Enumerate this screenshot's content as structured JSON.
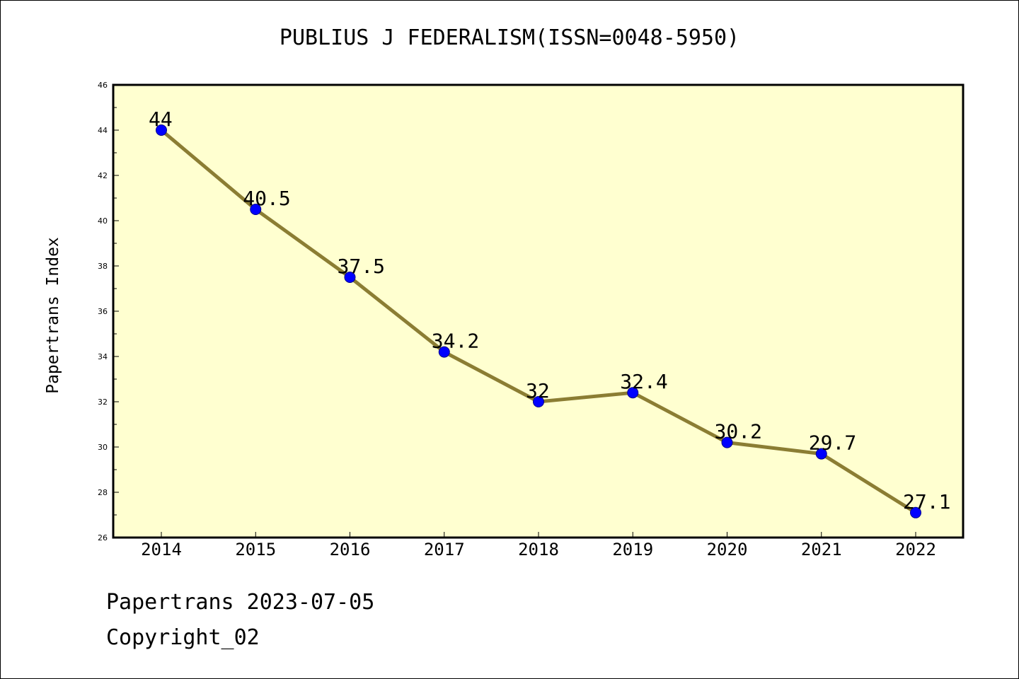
{
  "footer": {
    "date_line": "Papertrans 2023-07-05",
    "copyright": "Copyright_02"
  },
  "colors": {
    "plot_background": "#ffffd0",
    "line": "#8b7d33",
    "marker": "#0000ff",
    "marker_edge": "#00008b"
  },
  "chart_data": {
    "type": "line",
    "title": "PUBLIUS J FEDERALISM(ISSN=0048-5950)",
    "xlabel": "",
    "ylabel": "Papertrans Index",
    "categories": [
      "2014",
      "2015",
      "2016",
      "2017",
      "2018",
      "2019",
      "2020",
      "2021",
      "2022"
    ],
    "values": [
      44,
      40.5,
      37.5,
      34.2,
      32,
      32.4,
      30.2,
      29.7,
      27.1
    ],
    "data_labels": [
      "44",
      "40.5",
      "37.5",
      "34.2",
      "32",
      "32.4",
      "30.2",
      "29.7",
      "27.1"
    ],
    "ylim": [
      26,
      46
    ],
    "y_ticks": [
      "26",
      "28",
      "30",
      "32",
      "34",
      "36",
      "38",
      "40",
      "42",
      "44",
      "46"
    ],
    "grid": false,
    "legend": "none"
  }
}
